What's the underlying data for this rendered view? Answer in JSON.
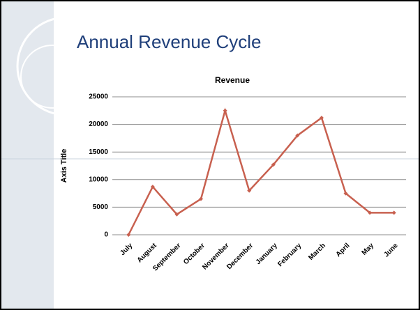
{
  "slide_title": "Annual Revenue Cycle",
  "chart_data": {
    "type": "line",
    "title": "Revenue",
    "y_label": "Axis Title",
    "categories": [
      "July",
      "August",
      "September",
      "October",
      "November",
      "December",
      "January",
      "February",
      "March",
      "April",
      "May",
      "June"
    ],
    "series": [
      {
        "name": "Revenue",
        "color": "#c8604f",
        "values": [
          0,
          8700,
          3700,
          6500,
          22500,
          8000,
          12700,
          18000,
          21200,
          7500,
          4000,
          4000
        ]
      }
    ],
    "ylim": [
      0,
      25000
    ],
    "yticks": [
      0,
      5000,
      10000,
      15000,
      20000,
      25000
    ],
    "grid": true
  }
}
